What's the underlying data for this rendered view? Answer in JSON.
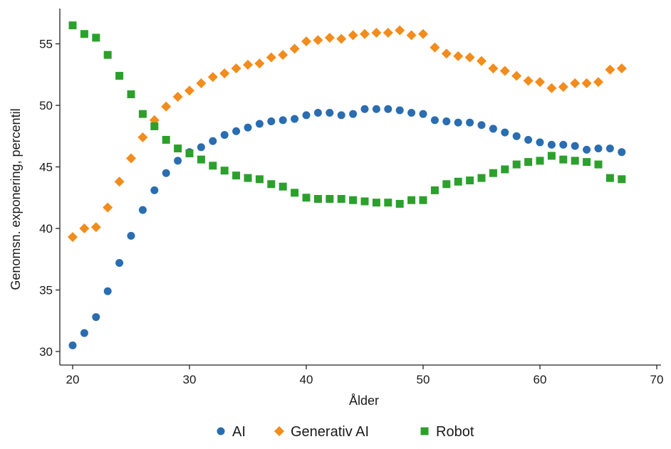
{
  "chart_data": {
    "type": "scatter",
    "xlabel": "Ålder",
    "ylabel": "Genomsn. exponering, percentil",
    "xlim": [
      20,
      70
    ],
    "ylim": [
      30,
      57
    ],
    "xticks": [
      20,
      30,
      40,
      50,
      60,
      70
    ],
    "yticks": [
      30,
      35,
      40,
      45,
      50,
      55
    ],
    "grid": false,
    "legend_position": "bottom",
    "x": [
      20,
      21,
      22,
      23,
      24,
      25,
      26,
      27,
      28,
      29,
      30,
      31,
      32,
      33,
      34,
      35,
      36,
      37,
      38,
      39,
      40,
      41,
      42,
      43,
      44,
      45,
      46,
      47,
      48,
      49,
      50,
      51,
      52,
      53,
      54,
      55,
      56,
      57,
      58,
      59,
      60,
      61,
      62,
      63,
      64,
      65,
      66,
      67
    ],
    "series": [
      {
        "name": "AI",
        "marker": "circle",
        "color": "#2a6db0",
        "values": [
          30.5,
          31.5,
          32.8,
          34.9,
          37.2,
          39.4,
          41.5,
          43.1,
          44.5,
          45.5,
          46.2,
          46.6,
          47.1,
          47.6,
          47.9,
          48.2,
          48.5,
          48.7,
          48.8,
          48.9,
          49.2,
          49.4,
          49.4,
          49.2,
          49.3,
          49.7,
          49.7,
          49.7,
          49.6,
          49.4,
          49.3,
          48.8,
          48.7,
          48.6,
          48.6,
          48.4,
          48.1,
          47.8,
          47.5,
          47.2,
          47.0,
          46.8,
          46.8,
          46.7,
          46.4,
          46.5,
          46.5,
          46.2
        ]
      },
      {
        "name": "Generativ AI",
        "marker": "diamond",
        "color": "#f28c1c",
        "values": [
          39.3,
          40.0,
          40.1,
          41.7,
          43.8,
          45.7,
          47.4,
          48.8,
          49.9,
          50.7,
          51.2,
          51.8,
          52.3,
          52.6,
          53.0,
          53.3,
          53.4,
          53.9,
          54.1,
          54.6,
          55.2,
          55.3,
          55.5,
          55.4,
          55.7,
          55.8,
          55.9,
          55.9,
          56.1,
          55.7,
          55.8,
          54.7,
          54.2,
          54.0,
          53.9,
          53.6,
          53.0,
          52.8,
          52.4,
          52.0,
          51.9,
          51.4,
          51.5,
          51.8,
          51.8,
          51.9,
          52.9,
          53.0
        ]
      },
      {
        "name": "Robot",
        "marker": "square",
        "color": "#2ca02c",
        "values": [
          56.5,
          55.8,
          55.5,
          54.1,
          52.4,
          50.9,
          49.3,
          48.3,
          47.2,
          46.5,
          46.1,
          45.6,
          45.1,
          44.7,
          44.3,
          44.1,
          44.0,
          43.6,
          43.4,
          42.9,
          42.5,
          42.4,
          42.4,
          42.4,
          42.3,
          42.2,
          42.1,
          42.1,
          42.0,
          42.3,
          42.3,
          43.1,
          43.6,
          43.8,
          43.9,
          44.1,
          44.5,
          44.8,
          45.2,
          45.4,
          45.5,
          45.9,
          45.6,
          45.5,
          45.4,
          45.2,
          44.1,
          44.0
        ]
      }
    ]
  }
}
